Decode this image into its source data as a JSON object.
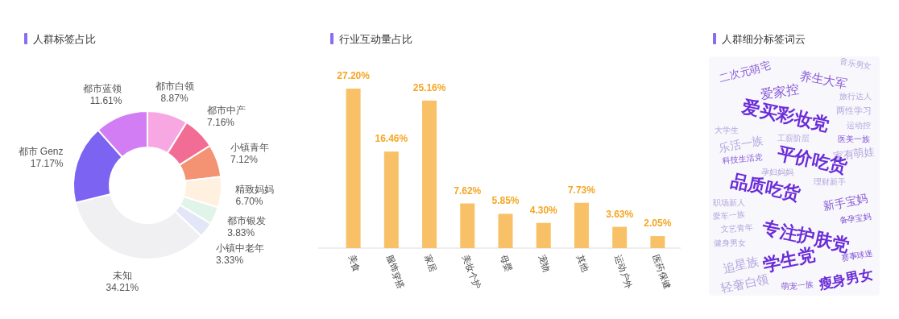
{
  "chart_data": [
    {
      "type": "donut",
      "title": "人群标签占比",
      "data_labels": true,
      "categories": [
        "都市白领",
        "都市中产",
        "小镇青年",
        "精致妈妈",
        "都市银发",
        "小镇中老年",
        "未知",
        "都市 Genz",
        "都市蓝领"
      ],
      "values": [
        8.87,
        7.16,
        7.12,
        6.7,
        3.83,
        3.33,
        34.21,
        17.17,
        11.61
      ],
      "value_labels": [
        "8.87%",
        "7.16%",
        "7.12%",
        "6.70%",
        "3.83%",
        "3.33%",
        "34.21%",
        "17.17%",
        "11.61%"
      ],
      "colors": [
        "#f7a8e2",
        "#f26d95",
        "#f49274",
        "#fff0df",
        "#e0f4e9",
        "#e3e6f6",
        "#f0f0f2",
        "#7c63f2",
        "#d27df3"
      ]
    },
    {
      "type": "bar",
      "title": "行业互动量占比",
      "data_labels": true,
      "tick_labels": "x",
      "categories": [
        "美食",
        "服饰穿搭",
        "家居",
        "美妆个护",
        "母婴",
        "宠物",
        "其他",
        "运动户外",
        "医药保健"
      ],
      "values": [
        27.2,
        16.46,
        25.16,
        7.62,
        5.85,
        4.3,
        7.73,
        3.63,
        2.05
      ],
      "value_labels": [
        "27.20%",
        "16.46%",
        "25.16%",
        "7.62%",
        "5.85%",
        "4.30%",
        "7.73%",
        "3.63%",
        "2.05%"
      ],
      "color": "#f9c167"
    },
    {
      "type": "other",
      "title": "人群细分标签词云",
      "annotations": [
        "二次元萌宅",
        "养生大军",
        "音乐男女",
        "爱家控",
        "旅行达人",
        "爱买彩妆党",
        "两性学习",
        "大学生",
        "运动控",
        "乐活一族",
        "工薪阶层",
        "医美一族",
        "家有萌娃",
        "科技生活党",
        "平价吃货",
        "孕妇妈妈",
        "理财新手",
        "品质吃货",
        "职场新人",
        "新手宝妈",
        "爱车一族",
        "备孕宝妈",
        "文艺青年",
        "专注护肤党",
        "健身男女",
        "学生党",
        "赛事球迷",
        "追星族",
        "轻奢白领",
        "萌宠一族",
        "瘦身男女"
      ]
    }
  ]
}
